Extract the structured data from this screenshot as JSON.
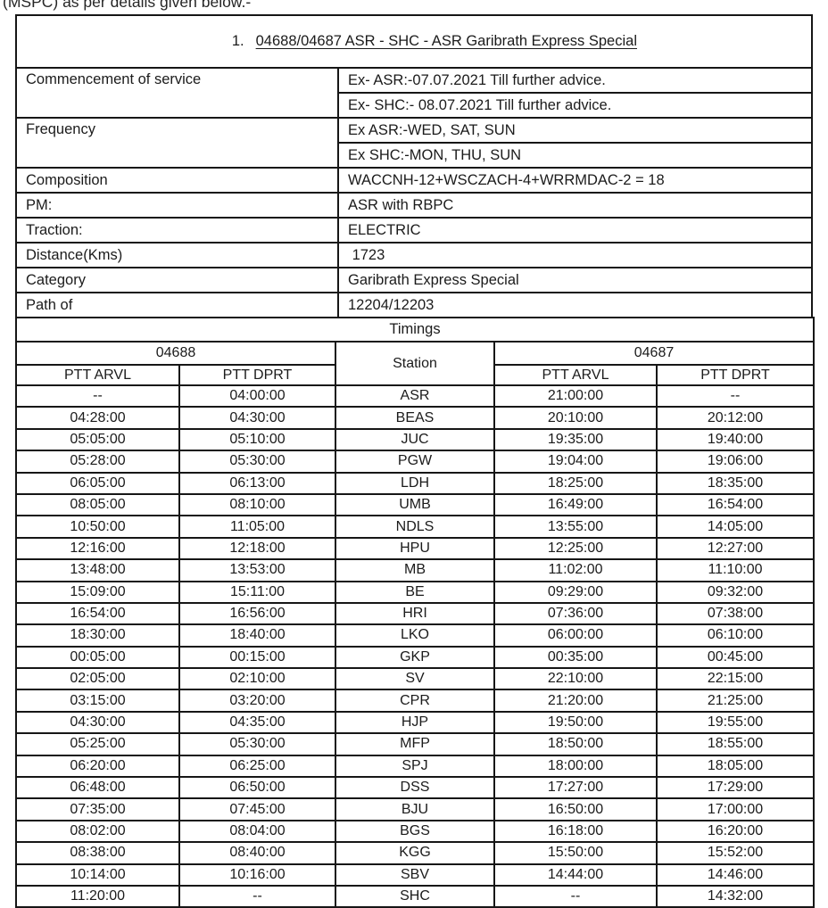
{
  "page": {
    "top_note": "(MSPC) as per details given below.-"
  },
  "train_details": {
    "title_number": "1.",
    "title": "04688/04687 ASR - SHC - ASR Garibrath Express Special",
    "rows": [
      {
        "label": "Commencement of service",
        "values": [
          "Ex- ASR:-07.07.2021 Till further advice.",
          "Ex- SHC:- 08.07.2021 Till further advice."
        ]
      },
      {
        "label": "Frequency",
        "values": [
          "Ex ASR:-WED, SAT, SUN",
          "Ex SHC:-MON, THU, SUN"
        ]
      },
      {
        "label": "Composition",
        "values": [
          "WACCNH-12+WSCZACH-4+WRRMDAC-2 = 18"
        ]
      },
      {
        "label": "PM:",
        "values": [
          "ASR with RBPC"
        ]
      },
      {
        "label": "Traction:",
        "values": [
          "ELECTRIC"
        ]
      },
      {
        "label": "Distance(Kms)",
        "values": [
          " 1723"
        ]
      },
      {
        "label": "Category",
        "values": [
          "Garibrath Express Special"
        ]
      },
      {
        "label": "Path of",
        "values": [
          "12204/12203"
        ]
      }
    ]
  },
  "timings": {
    "section_title": "Timings",
    "train_down": "04688",
    "train_up": "04687",
    "station_header": "Station",
    "arvl_header": "PTT ARVL",
    "dprt_header": "PTT DPRT",
    "rows": [
      {
        "down_arvl": "--",
        "down_dprt": "04:00:00",
        "station": "ASR",
        "up_arvl": "21:00:00",
        "up_dprt": "--"
      },
      {
        "down_arvl": "04:28:00",
        "down_dprt": "04:30:00",
        "station": "BEAS",
        "up_arvl": "20:10:00",
        "up_dprt": "20:12:00"
      },
      {
        "down_arvl": "05:05:00",
        "down_dprt": "05:10:00",
        "station": "JUC",
        "up_arvl": "19:35:00",
        "up_dprt": "19:40:00"
      },
      {
        "down_arvl": "05:28:00",
        "down_dprt": "05:30:00",
        "station": "PGW",
        "up_arvl": "19:04:00",
        "up_dprt": "19:06:00"
      },
      {
        "down_arvl": "06:05:00",
        "down_dprt": "06:13:00",
        "station": "LDH",
        "up_arvl": "18:25:00",
        "up_dprt": "18:35:00"
      },
      {
        "down_arvl": "08:05:00",
        "down_dprt": "08:10:00",
        "station": "UMB",
        "up_arvl": "16:49:00",
        "up_dprt": "16:54:00"
      },
      {
        "down_arvl": "10:50:00",
        "down_dprt": "11:05:00",
        "station": "NDLS",
        "up_arvl": "13:55:00",
        "up_dprt": "14:05:00"
      },
      {
        "down_arvl": "12:16:00",
        "down_dprt": "12:18:00",
        "station": "HPU",
        "up_arvl": "12:25:00",
        "up_dprt": "12:27:00"
      },
      {
        "down_arvl": "13:48:00",
        "down_dprt": "13:53:00",
        "station": "MB",
        "up_arvl": "11:02:00",
        "up_dprt": "11:10:00"
      },
      {
        "down_arvl": "15:09:00",
        "down_dprt": "15:11:00",
        "station": "BE",
        "up_arvl": "09:29:00",
        "up_dprt": "09:32:00"
      },
      {
        "down_arvl": "16:54:00",
        "down_dprt": "16:56:00",
        "station": "HRI",
        "up_arvl": "07:36:00",
        "up_dprt": "07:38:00"
      },
      {
        "down_arvl": "18:30:00",
        "down_dprt": "18:40:00",
        "station": "LKO",
        "up_arvl": "06:00:00",
        "up_dprt": "06:10:00"
      },
      {
        "down_arvl": "00:05:00",
        "down_dprt": "00:15:00",
        "station": "GKP",
        "up_arvl": "00:35:00",
        "up_dprt": "00:45:00"
      },
      {
        "down_arvl": "02:05:00",
        "down_dprt": "02:10:00",
        "station": "SV",
        "up_arvl": "22:10:00",
        "up_dprt": "22:15:00"
      },
      {
        "down_arvl": "03:15:00",
        "down_dprt": "03:20:00",
        "station": "CPR",
        "up_arvl": "21:20:00",
        "up_dprt": "21:25:00"
      },
      {
        "down_arvl": "04:30:00",
        "down_dprt": "04:35:00",
        "station": "HJP",
        "up_arvl": "19:50:00",
        "up_dprt": "19:55:00"
      },
      {
        "down_arvl": "05:25:00",
        "down_dprt": "05:30:00",
        "station": "MFP",
        "up_arvl": "18:50:00",
        "up_dprt": "18:55:00"
      },
      {
        "down_arvl": "06:20:00",
        "down_dprt": "06:25:00",
        "station": "SPJ",
        "up_arvl": "18:00:00",
        "up_dprt": "18:05:00"
      },
      {
        "down_arvl": "06:48:00",
        "down_dprt": "06:50:00",
        "station": "DSS",
        "up_arvl": "17:27:00",
        "up_dprt": "17:29:00"
      },
      {
        "down_arvl": "07:35:00",
        "down_dprt": "07:45:00",
        "station": "BJU",
        "up_arvl": "16:50:00",
        "up_dprt": "17:00:00"
      },
      {
        "down_arvl": "08:02:00",
        "down_dprt": "08:04:00",
        "station": "BGS",
        "up_arvl": "16:18:00",
        "up_dprt": "16:20:00"
      },
      {
        "down_arvl": "08:38:00",
        "down_dprt": "08:40:00",
        "station": "KGG",
        "up_arvl": "15:50:00",
        "up_dprt": "15:52:00"
      },
      {
        "down_arvl": "10:14:00",
        "down_dprt": "10:16:00",
        "station": "SBV",
        "up_arvl": "14:44:00",
        "up_dprt": "14:46:00"
      },
      {
        "down_arvl": "11:20:00",
        "down_dprt": "--",
        "station": "SHC",
        "up_arvl": "--",
        "up_dprt": "14:32:00"
      }
    ]
  }
}
